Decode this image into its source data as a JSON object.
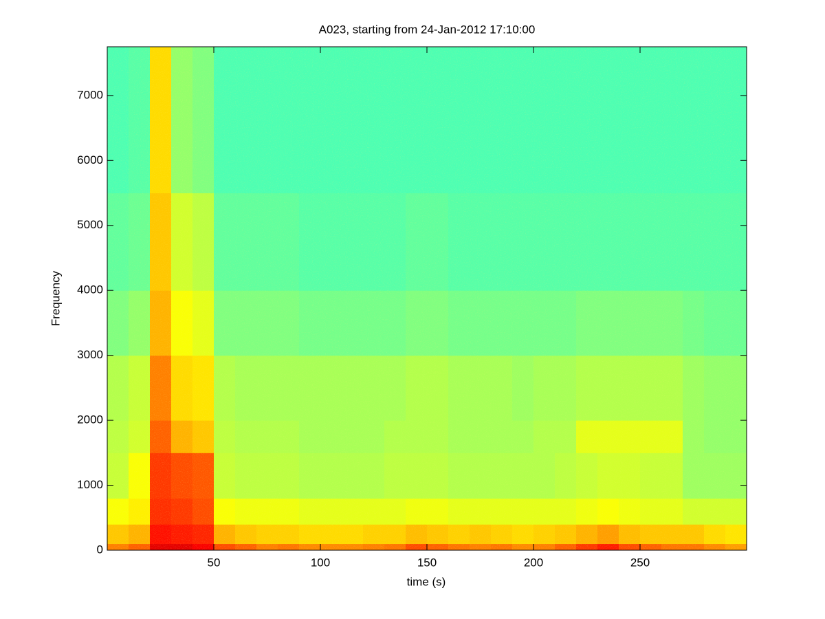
{
  "chart_data": {
    "type": "spectrogram",
    "title": "A023, starting from 24-Jan-2012 17:10:00",
    "x_label": "time (s)",
    "y_label": "Frequency",
    "colormap": "jet",
    "xlim": [
      0,
      300
    ],
    "ylim": [
      0,
      7750
    ],
    "xticks": [
      50,
      100,
      150,
      200,
      250
    ],
    "yticks": [
      0,
      1000,
      2000,
      3000,
      4000,
      5000,
      6000,
      7000
    ],
    "time_bins": [
      0,
      10,
      20,
      30,
      40,
      50,
      60,
      70,
      80,
      90,
      100,
      110,
      120,
      130,
      140,
      150,
      160,
      170,
      180,
      190,
      200,
      210,
      220,
      230,
      240,
      250,
      260,
      270,
      280,
      290,
      300
    ],
    "freq_bins": [
      0,
      100,
      400,
      800,
      1500,
      2000,
      3000,
      4000,
      5500,
      7750
    ],
    "z": [
      [
        0.75,
        0.78,
        0.9,
        0.9,
        0.88,
        0.8,
        0.78,
        0.75,
        0.76,
        0.74,
        0.74,
        0.74,
        0.75,
        0.76,
        0.8,
        0.78,
        0.76,
        0.75,
        0.76,
        0.74,
        0.75,
        0.78,
        0.82,
        0.85,
        0.8,
        0.78,
        0.76,
        0.76,
        0.74,
        0.72
      ],
      [
        0.68,
        0.7,
        0.86,
        0.85,
        0.84,
        0.7,
        0.68,
        0.67,
        0.67,
        0.66,
        0.66,
        0.66,
        0.67,
        0.67,
        0.69,
        0.68,
        0.67,
        0.68,
        0.67,
        0.66,
        0.67,
        0.68,
        0.7,
        0.72,
        0.69,
        0.68,
        0.68,
        0.68,
        0.66,
        0.65
      ],
      [
        0.62,
        0.64,
        0.83,
        0.82,
        0.8,
        0.62,
        0.61,
        0.61,
        0.61,
        0.6,
        0.6,
        0.6,
        0.6,
        0.6,
        0.61,
        0.61,
        0.6,
        0.6,
        0.6,
        0.6,
        0.6,
        0.6,
        0.61,
        0.62,
        0.61,
        0.6,
        0.6,
        0.58,
        0.58,
        0.58
      ],
      [
        0.57,
        0.62,
        0.82,
        0.8,
        0.79,
        0.57,
        0.56,
        0.56,
        0.56,
        0.55,
        0.55,
        0.55,
        0.55,
        0.56,
        0.56,
        0.56,
        0.55,
        0.55,
        0.55,
        0.55,
        0.55,
        0.56,
        0.57,
        0.58,
        0.58,
        0.57,
        0.57,
        0.53,
        0.53,
        0.53
      ],
      [
        0.56,
        0.58,
        0.78,
        0.7,
        0.68,
        0.56,
        0.55,
        0.55,
        0.55,
        0.54,
        0.54,
        0.54,
        0.54,
        0.55,
        0.55,
        0.55,
        0.54,
        0.54,
        0.54,
        0.54,
        0.55,
        0.55,
        0.6,
        0.6,
        0.6,
        0.6,
        0.6,
        0.53,
        0.52,
        0.52
      ],
      [
        0.55,
        0.57,
        0.75,
        0.66,
        0.65,
        0.55,
        0.54,
        0.54,
        0.54,
        0.54,
        0.54,
        0.54,
        0.54,
        0.54,
        0.55,
        0.55,
        0.54,
        0.54,
        0.54,
        0.53,
        0.54,
        0.54,
        0.55,
        0.55,
        0.55,
        0.55,
        0.55,
        0.53,
        0.52,
        0.52
      ],
      [
        0.5,
        0.52,
        0.7,
        0.62,
        0.6,
        0.5,
        0.5,
        0.5,
        0.5,
        0.49,
        0.49,
        0.49,
        0.49,
        0.49,
        0.5,
        0.5,
        0.49,
        0.49,
        0.49,
        0.49,
        0.49,
        0.49,
        0.5,
        0.5,
        0.5,
        0.5,
        0.5,
        0.49,
        0.48,
        0.48
      ],
      [
        0.47,
        0.48,
        0.68,
        0.58,
        0.56,
        0.47,
        0.47,
        0.47,
        0.47,
        0.46,
        0.46,
        0.46,
        0.46,
        0.46,
        0.47,
        0.47,
        0.46,
        0.46,
        0.46,
        0.46,
        0.46,
        0.46,
        0.46,
        0.46,
        0.46,
        0.46,
        0.46,
        0.46,
        0.46,
        0.46
      ],
      [
        0.45,
        0.46,
        0.66,
        0.52,
        0.5,
        0.45,
        0.45,
        0.45,
        0.45,
        0.45,
        0.45,
        0.45,
        0.45,
        0.45,
        0.45,
        0.45,
        0.45,
        0.45,
        0.45,
        0.45,
        0.45,
        0.45,
        0.45,
        0.45,
        0.45,
        0.45,
        0.45,
        0.45,
        0.45,
        0.45
      ]
    ]
  }
}
